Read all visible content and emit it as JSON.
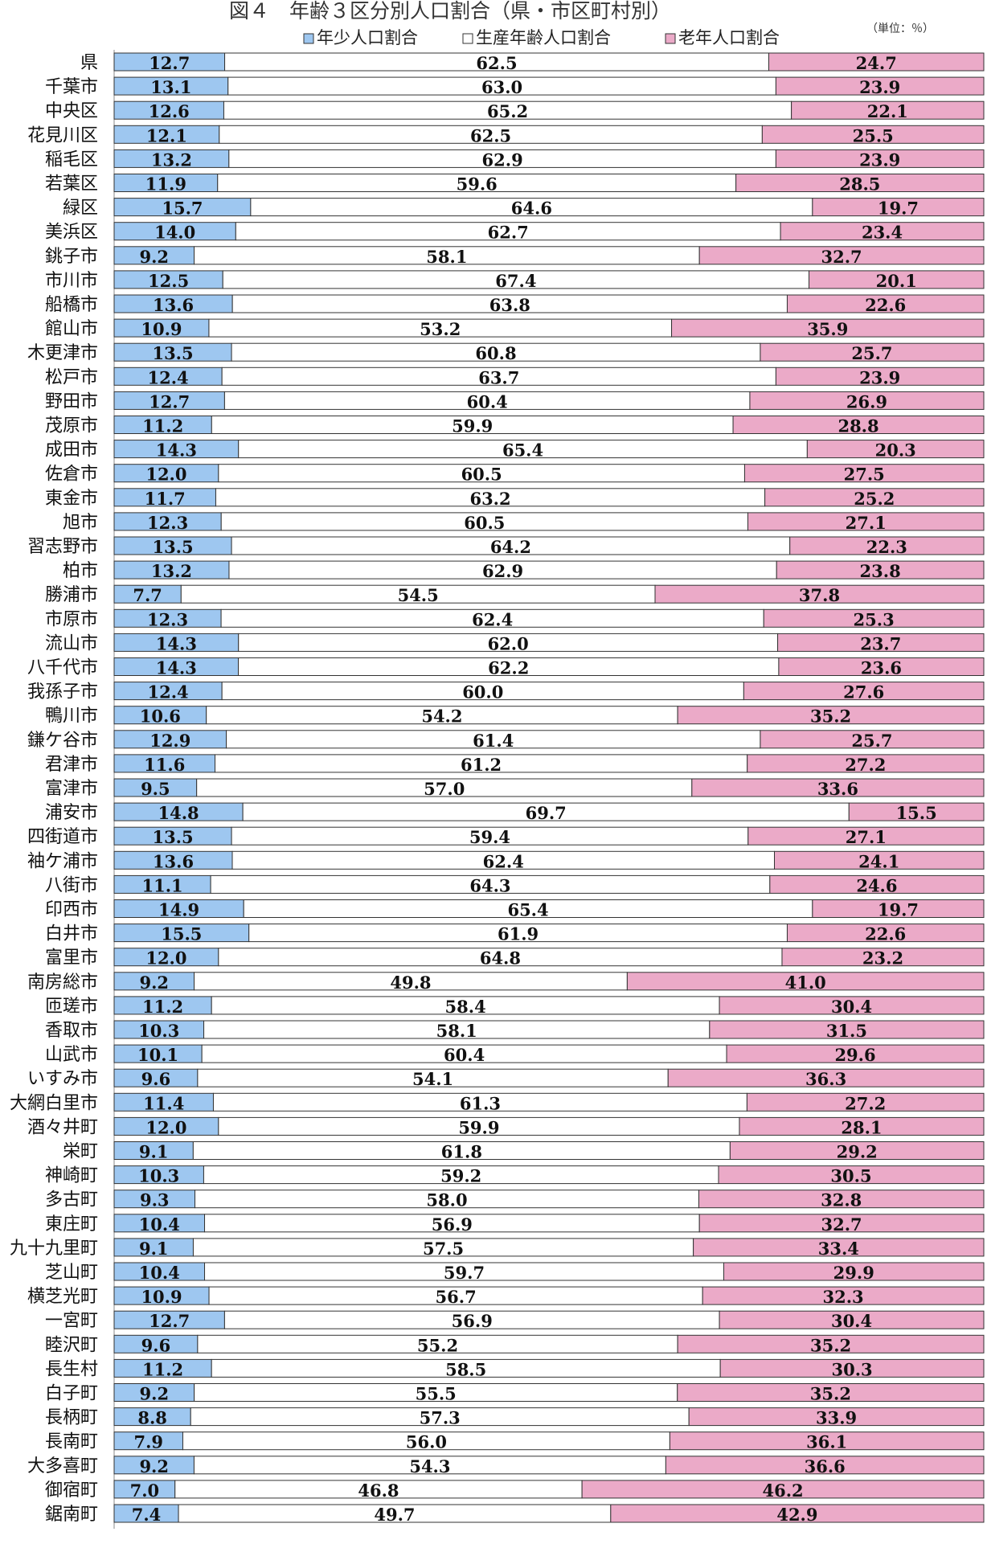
{
  "chart_data": {
    "type": "bar",
    "stacked": "percent",
    "orientation": "horizontal",
    "title": "図４　年齢３区分別人口割合（県・市区町村別）",
    "unit_note": "（単位：％）",
    "legend_position": "top",
    "xlim": [
      0,
      100
    ],
    "categories": [
      "県",
      "千葉市",
      "中央区",
      "花見川区",
      "稲毛区",
      "若葉区",
      "緑区",
      "美浜区",
      "銚子市",
      "市川市",
      "船橋市",
      "館山市",
      "木更津市",
      "松戸市",
      "野田市",
      "茂原市",
      "成田市",
      "佐倉市",
      "東金市",
      "旭市",
      "習志野市",
      "柏市",
      "勝浦市",
      "市原市",
      "流山市",
      "八千代市",
      "我孫子市",
      "鴨川市",
      "鎌ケ谷市",
      "君津市",
      "富津市",
      "浦安市",
      "四街道市",
      "袖ケ浦市",
      "八街市",
      "印西市",
      "白井市",
      "富里市",
      "南房総市",
      "匝瑳市",
      "香取市",
      "山武市",
      "いすみ市",
      "大網白里市",
      "酒々井町",
      "栄町",
      "神崎町",
      "多古町",
      "東庄町",
      "九十九里町",
      "芝山町",
      "横芝光町",
      "一宮町",
      "睦沢町",
      "長生村",
      "白子町",
      "長柄町",
      "長南町",
      "大多喜町",
      "御宿町",
      "鋸南町"
    ],
    "series": [
      {
        "name": "年少人口割合",
        "color": "#9ec7f0",
        "values": [
          12.7,
          13.1,
          12.6,
          12.1,
          13.2,
          11.9,
          15.7,
          14.0,
          9.2,
          12.5,
          13.6,
          10.9,
          13.5,
          12.4,
          12.7,
          11.2,
          14.3,
          12.0,
          11.7,
          12.3,
          13.5,
          13.2,
          7.7,
          12.3,
          14.3,
          14.3,
          12.4,
          10.6,
          12.9,
          11.6,
          9.5,
          14.8,
          13.5,
          13.6,
          11.1,
          14.9,
          15.5,
          12.0,
          9.2,
          11.2,
          10.3,
          10.1,
          9.6,
          11.4,
          12.0,
          9.1,
          10.3,
          9.3,
          10.4,
          9.1,
          10.4,
          10.9,
          12.7,
          9.6,
          11.2,
          9.2,
          8.8,
          7.9,
          9.2,
          7.0,
          7.4
        ]
      },
      {
        "name": "生産年齢人口割合",
        "color": "#ffffff",
        "values": [
          62.5,
          63.0,
          65.2,
          62.5,
          62.9,
          59.6,
          64.6,
          62.7,
          58.1,
          67.4,
          63.8,
          53.2,
          60.8,
          63.7,
          60.4,
          59.9,
          65.4,
          60.5,
          63.2,
          60.5,
          64.2,
          62.9,
          54.5,
          62.4,
          62.0,
          62.2,
          60.0,
          54.2,
          61.4,
          61.2,
          57.0,
          69.7,
          59.4,
          62.4,
          64.3,
          65.4,
          61.9,
          64.8,
          49.8,
          58.4,
          58.1,
          60.4,
          54.1,
          61.3,
          59.9,
          61.8,
          59.2,
          58.0,
          56.9,
          57.5,
          59.7,
          56.7,
          56.9,
          55.2,
          58.5,
          55.5,
          57.3,
          56.0,
          54.3,
          46.8,
          49.7
        ]
      },
      {
        "name": "老年人口割合",
        "color": "#ebaac8",
        "values": [
          24.7,
          23.9,
          22.1,
          25.5,
          23.9,
          28.5,
          19.7,
          23.4,
          32.7,
          20.1,
          22.6,
          35.9,
          25.7,
          23.9,
          26.9,
          28.8,
          20.3,
          27.5,
          25.2,
          27.1,
          22.3,
          23.8,
          37.8,
          25.3,
          23.7,
          23.6,
          27.6,
          35.2,
          25.7,
          27.2,
          33.6,
          15.5,
          27.1,
          24.1,
          24.6,
          19.7,
          22.6,
          23.2,
          41.0,
          30.4,
          31.5,
          29.6,
          36.3,
          27.2,
          28.1,
          29.2,
          30.5,
          32.8,
          32.7,
          33.4,
          29.9,
          32.3,
          30.4,
          35.2,
          30.3,
          35.2,
          33.9,
          36.1,
          36.6,
          46.2,
          42.9
        ]
      }
    ]
  }
}
